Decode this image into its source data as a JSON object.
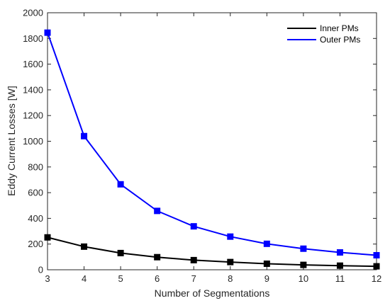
{
  "chart_data": {
    "type": "line",
    "title": "",
    "xlabel": "Number of Segmentations",
    "ylabel": "Eddy Current Losses [W]",
    "xlim": [
      3,
      12
    ],
    "ylim": [
      0,
      2000
    ],
    "x_ticks": [
      "3",
      "4",
      "5",
      "6",
      "7",
      "8",
      "9",
      "10",
      "11",
      "12"
    ],
    "y_ticks": [
      "0",
      "200",
      "400",
      "600",
      "800",
      "1000",
      "1200",
      "1400",
      "1600",
      "1800",
      "2000"
    ],
    "x": [
      3,
      4,
      5,
      6,
      7,
      8,
      9,
      10,
      11,
      12
    ],
    "grid": false,
    "legend_position": "top-right",
    "series": [
      {
        "name": "Inner PMs",
        "color": "#000000",
        "marker": "square",
        "values": [
          252,
          180,
          130,
          98,
          75,
          60,
          47,
          38,
          32,
          27
        ]
      },
      {
        "name": "Outer PMs",
        "color": "#0000ff",
        "marker": "square",
        "values": [
          1845,
          1040,
          665,
          458,
          338,
          258,
          202,
          164,
          135,
          113
        ]
      }
    ]
  }
}
